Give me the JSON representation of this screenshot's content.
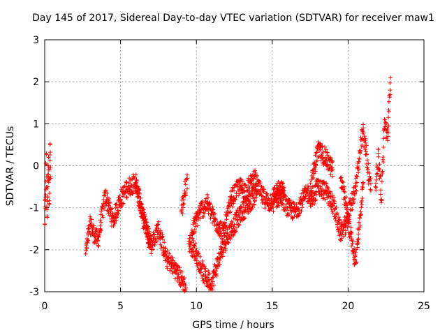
{
  "chart_data": {
    "type": "scatter",
    "title": "Day 145 of 2017, Sidereal Day-to-day VTEC variation (SDTVAR) for receiver maw1",
    "xlabel": "GPS time / hours",
    "ylabel": "SDTVAR / TECUs",
    "xlim": [
      0,
      25
    ],
    "ylim": [
      -3,
      3
    ],
    "xticks": [
      0,
      5,
      10,
      15,
      20,
      25
    ],
    "yticks": [
      -3,
      -2,
      -1,
      0,
      1,
      2,
      3
    ],
    "grid": true,
    "marker": "+",
    "series": [
      {
        "name": "SDTVAR",
        "color": "#ff0000",
        "segments": [
          {
            "x": [
              0.0,
              0.05,
              0.1,
              0.15,
              0.2,
              0.25,
              0.3,
              0.35,
              0.4
            ],
            "y": [
              -1.4,
              -0.8,
              0.3,
              -1.2,
              -0.5,
              0.2,
              -0.9,
              0.5,
              -0.3
            ]
          },
          {
            "x": [
              2.7,
              3.0,
              3.5,
              4.0,
              4.5,
              5.0,
              5.5,
              6.0,
              6.5,
              7.0
            ],
            "y": [
              -2.1,
              -1.4,
              -1.8,
              -0.7,
              -1.3,
              -0.8,
              -0.5,
              -0.4,
              -1.3,
              -1.8
            ]
          },
          {
            "x": [
              6.0,
              6.5,
              7.0,
              7.5,
              8.0,
              8.5,
              9.0,
              9.3
            ],
            "y": [
              -0.4,
              -1.2,
              -1.9,
              -1.5,
              -2.2,
              -2.4,
              -2.7,
              -2.9
            ]
          },
          {
            "x": [
              9.0,
              9.2,
              9.4
            ],
            "y": [
              -1.1,
              -0.7,
              -0.3
            ]
          },
          {
            "x": [
              9.5,
              10.0,
              10.5,
              11.0,
              11.5,
              12.0,
              12.5,
              13.0,
              13.5,
              14.0
            ],
            "y": [
              -1.8,
              -2.1,
              -2.6,
              -2.8,
              -2.2,
              -1.7,
              -1.4,
              -1.1,
              -0.9,
              -0.6
            ]
          },
          {
            "x": [
              9.7,
              10.2,
              10.7,
              11.2,
              11.8,
              12.3,
              12.8,
              13.3,
              13.8,
              14.3,
              14.8,
              15.3,
              15.8
            ],
            "y": [
              -1.6,
              -1.1,
              -0.9,
              -1.3,
              -1.6,
              -0.8,
              -0.5,
              -0.6,
              -0.3,
              -0.7,
              -0.9,
              -0.6,
              -0.6
            ]
          },
          {
            "x": [
              15.0,
              15.5,
              16.0,
              16.5,
              17.0,
              17.5,
              18.0,
              18.5,
              19.0
            ],
            "y": [
              -0.9,
              -0.7,
              -1.0,
              -1.1,
              -0.8,
              -0.6,
              0.4,
              0.2,
              -0.1
            ]
          },
          {
            "x": [
              17.5,
              18.0,
              18.5,
              19.0,
              19.5,
              20.0,
              20.5,
              21.0
            ],
            "y": [
              -0.9,
              -0.5,
              -0.6,
              -0.9,
              -1.6,
              -1.3,
              -2.3,
              -0.4
            ]
          },
          {
            "x": [
              19.5,
              20.0,
              20.5,
              21.0,
              21.5
            ],
            "y": [
              -0.3,
              -1.2,
              -0.5,
              0.9,
              -0.6
            ]
          },
          {
            "x": [
              21.8,
              22.0,
              22.2,
              22.4,
              22.6,
              22.8
            ],
            "y": [
              -0.5,
              0.3,
              -0.8,
              1.1,
              0.6,
              2.1
            ]
          }
        ]
      }
    ]
  }
}
